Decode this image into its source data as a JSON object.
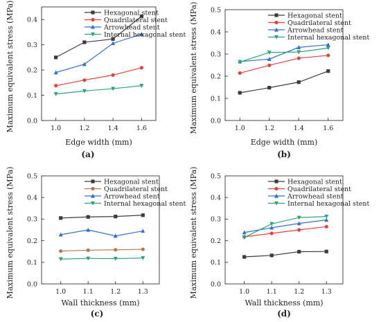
{
  "series_styles": [
    {
      "color": "#3c3c3c",
      "marker": "square"
    },
    {
      "color": "#e8413c",
      "marker": "circle"
    },
    {
      "color": "#2f6fd6",
      "marker": "triangle-up"
    },
    {
      "color": "#2ea37a",
      "marker": "triangle-down"
    }
  ],
  "series_styles_c": [
    {
      "color": "#3c3c3c",
      "marker": "square"
    },
    {
      "color": "#b8754e",
      "marker": "circle"
    },
    {
      "color": "#2f6fd6",
      "marker": "triangle-up"
    },
    {
      "color": "#2ea37a",
      "marker": "triangle-down"
    }
  ],
  "chart_data": [
    {
      "panel": "(a)",
      "type": "line",
      "xlabel": "Edge width (mm)",
      "ylabel": "Maximum equivalent stress (MPa)",
      "x": [
        1.0,
        1.2,
        1.4,
        1.6
      ],
      "xticks": [
        "1.0",
        "1.2",
        "1.4",
        "1.6"
      ],
      "ylim": [
        0.0,
        0.45
      ],
      "yticks": [
        "0.0",
        "0.1",
        "0.2",
        "0.3",
        "0.4"
      ],
      "legend_position": "top-right",
      "series": [
        {
          "name": "Hexagonal stent",
          "values": [
            0.25,
            0.31,
            0.323,
            0.413
          ]
        },
        {
          "name": "Quadrilateral stent",
          "values": [
            0.138,
            0.16,
            0.18,
            0.209
          ]
        },
        {
          "name": "Arrowhead stent",
          "values": [
            0.19,
            0.223,
            0.306,
            0.342
          ]
        },
        {
          "name": "Internal hexagonal stent",
          "values": [
            0.105,
            0.117,
            0.126,
            0.138
          ]
        }
      ]
    },
    {
      "panel": "(b)",
      "type": "line",
      "xlabel": "Edge width (mm)",
      "ylabel": "Maximum equivalent stress (MPa)",
      "x": [
        1.0,
        1.2,
        1.4,
        1.6
      ],
      "xticks": [
        "1.0",
        "1.2",
        "1.4",
        "1.6"
      ],
      "ylim": [
        0.0,
        0.5
      ],
      "yticks": [
        "0.0",
        "0.1",
        "0.2",
        "0.3",
        "0.4",
        "0.5"
      ],
      "legend_position": "top-right",
      "series": [
        {
          "name": "Hexagonal stent",
          "values": [
            0.125,
            0.148,
            0.173,
            0.223
          ]
        },
        {
          "name": "Quadrilateral stent",
          "values": [
            0.214,
            0.249,
            0.281,
            0.294
          ]
        },
        {
          "name": "Arrowhead stent",
          "values": [
            0.266,
            0.277,
            0.33,
            0.342
          ]
        },
        {
          "name": "Internal hexagonal stent",
          "values": [
            0.264,
            0.307,
            0.309,
            0.327
          ]
        }
      ]
    },
    {
      "panel": "(c)",
      "type": "line",
      "xlabel": "Wall thickness (mm)",
      "ylabel": "Maximum equivalent stress (MPa)",
      "x": [
        1.0,
        1.1,
        1.2,
        1.3
      ],
      "xticks": [
        "1.0",
        "1.1",
        "1.2",
        "1.3"
      ],
      "ylim": [
        0.0,
        0.5
      ],
      "yticks": [
        "0.0",
        "0.1",
        "0.2",
        "0.3",
        "0.4",
        "0.5"
      ],
      "legend_position": "top-right",
      "series": [
        {
          "name": "Hexagonal stent",
          "values": [
            0.305,
            0.31,
            0.312,
            0.318
          ]
        },
        {
          "name": "Quadrilateral stent",
          "values": [
            0.152,
            0.156,
            0.158,
            0.16
          ]
        },
        {
          "name": "Arrowhead stent",
          "values": [
            0.228,
            0.25,
            0.222,
            0.245
          ]
        },
        {
          "name": "Internal hexagonal stent",
          "values": [
            0.115,
            0.118,
            0.117,
            0.12
          ]
        }
      ]
    },
    {
      "panel": "(d)",
      "type": "line",
      "xlabel": "Wall thickness (mm)",
      "ylabel": "Maximum equivalent stress (MPa)",
      "x": [
        1.0,
        1.1,
        1.2,
        1.3
      ],
      "xticks": [
        "1.0",
        "1.1",
        "1.2",
        "1.3"
      ],
      "ylim": [
        0.0,
        0.5
      ],
      "yticks": [
        "0.0",
        "0.1",
        "0.2",
        "0.3",
        "0.4",
        "0.5"
      ],
      "legend_position": "top-right",
      "series": [
        {
          "name": "Hexagonal stent",
          "values": [
            0.125,
            0.132,
            0.149,
            0.15
          ]
        },
        {
          "name": "Quadrilateral stent",
          "values": [
            0.218,
            0.234,
            0.25,
            0.265
          ]
        },
        {
          "name": "Arrowhead stent",
          "values": [
            0.238,
            0.26,
            0.28,
            0.296
          ]
        },
        {
          "name": "Internal hexagonal stent",
          "values": [
            0.215,
            0.278,
            0.307,
            0.312
          ]
        }
      ]
    }
  ]
}
